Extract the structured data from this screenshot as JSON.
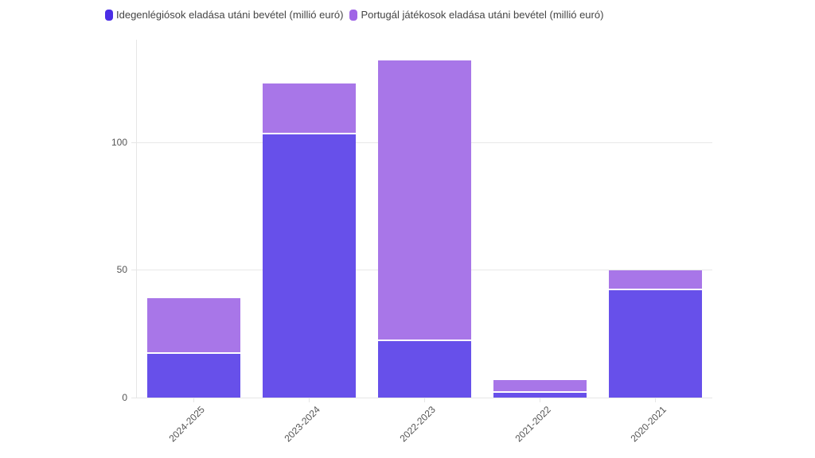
{
  "chart_data": {
    "type": "bar",
    "stacked": true,
    "title": "",
    "xlabel": "",
    "ylabel": "",
    "ylim": [
      0,
      140
    ],
    "yticks": [
      0,
      50,
      100
    ],
    "grid": true,
    "legend_position": "top",
    "categories": [
      "2024-2025",
      "2023-2024",
      "2022-2023",
      "2021-2022",
      "2020-2021"
    ],
    "series": [
      {
        "name": "Idegenlégiósok eladása utáni bevétel (millió euró)",
        "color": "#6750ea",
        "values": [
          17,
          103,
          22,
          2,
          42
        ]
      },
      {
        "name": "Portugál játékosok eladása utáni bevétel (millió euró)",
        "color": "#a876e8",
        "values": [
          22,
          20,
          110,
          5,
          8
        ]
      }
    ]
  },
  "legend": {
    "items": [
      {
        "label": "Idegenlégiósok eladása utáni bevétel (millió euró)",
        "color": "#4b2ee6"
      },
      {
        "label": "Portugál játékosok eladása utáni bevétel (millió euró)",
        "color": "#a066e6"
      }
    ]
  },
  "yaxis": {
    "labels": [
      "0",
      "50",
      "100"
    ]
  },
  "xaxis": {
    "labels": [
      "2024-2025",
      "2023-2024",
      "2022-2023",
      "2021-2022",
      "2020-2021"
    ]
  }
}
